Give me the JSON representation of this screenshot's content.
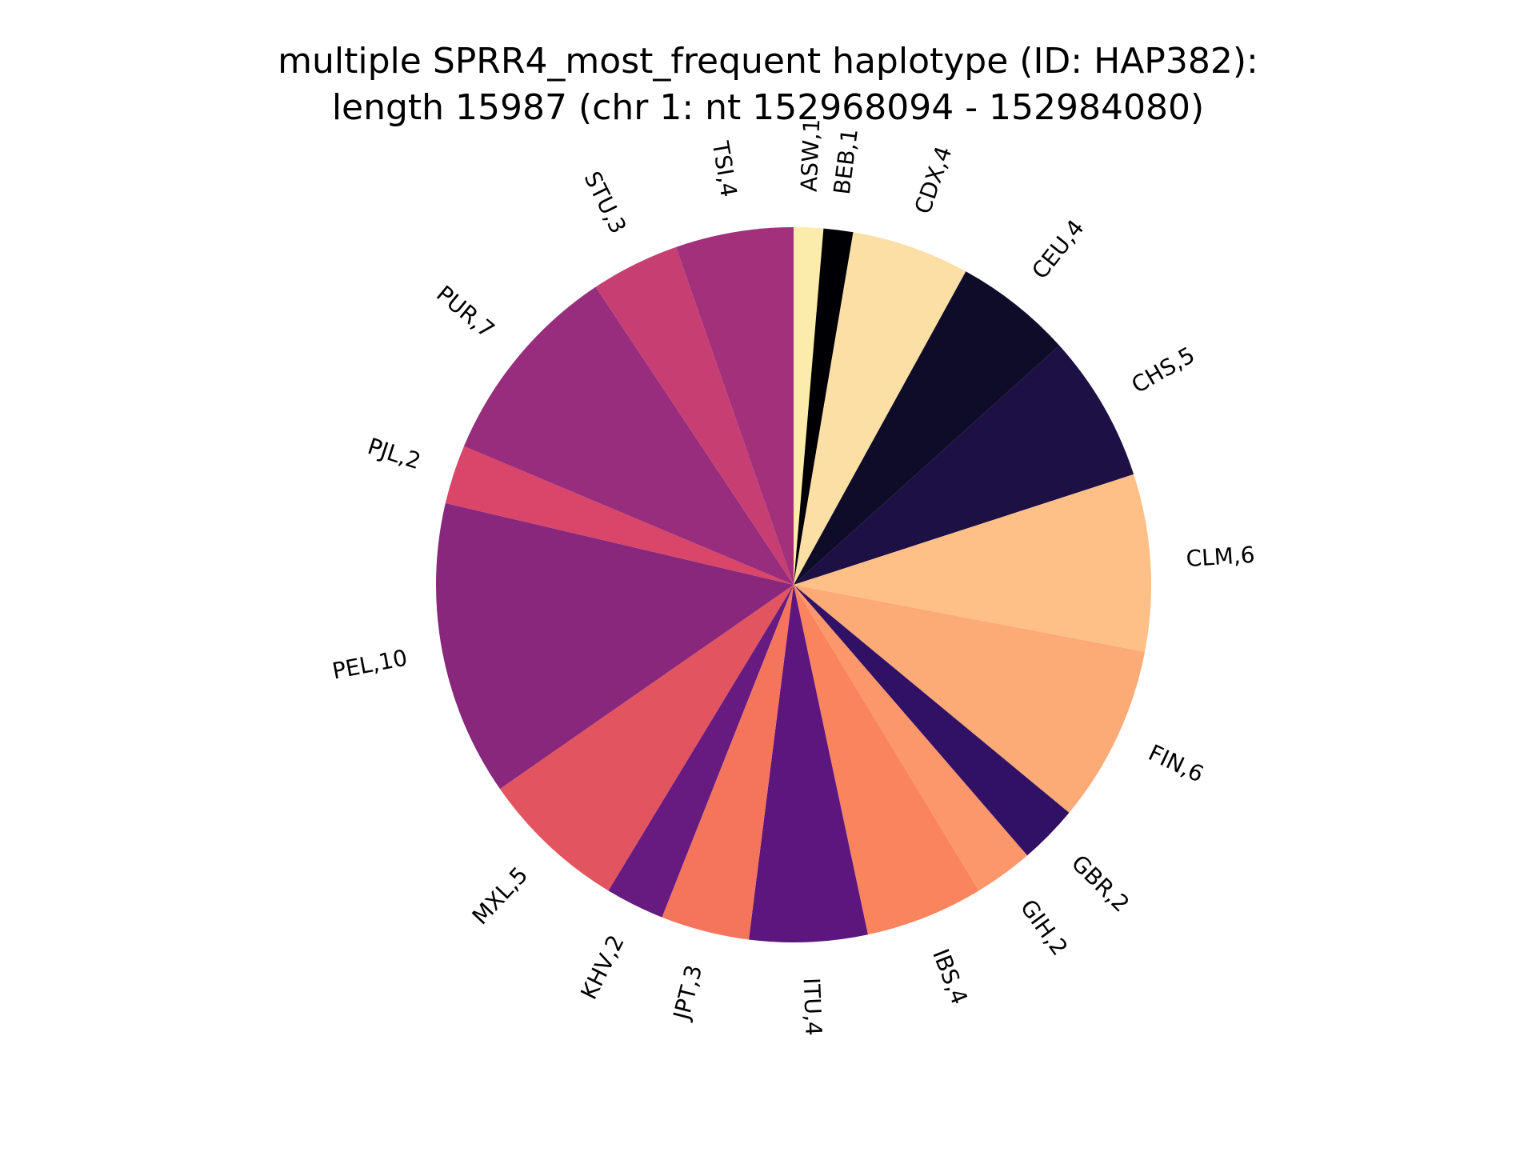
{
  "chart_data": {
    "type": "pie",
    "title_lines": [
      "multiple SPRR4_most_frequent haplotype (ID: HAP382):",
      "length 15987 (chr 1: nt 152968094 - 152984080)"
    ],
    "start_angle_deg": 90,
    "direction": "clockwise",
    "slices": [
      {
        "category": "ASW",
        "value": 1,
        "label": "ASW,1",
        "color": "#fcecab"
      },
      {
        "category": "BEB",
        "value": 1,
        "label": "BEB,1",
        "color": "#000004"
      },
      {
        "category": "CDX",
        "value": 4,
        "label": "CDX,4",
        "color": "#fcdfa4"
      },
      {
        "category": "CEU",
        "value": 4,
        "label": "CEU,4",
        "color": "#0f0c29"
      },
      {
        "category": "CHS",
        "value": 5,
        "label": "CHS,5",
        "color": "#1c1044"
      },
      {
        "category": "CLM",
        "value": 6,
        "label": "CLM,6",
        "color": "#fec086"
      },
      {
        "category": "FIN",
        "value": 6,
        "label": "FIN,6",
        "color": "#fcab77"
      },
      {
        "category": "GBR",
        "value": 2,
        "label": "GBR,2",
        "color": "#311165"
      },
      {
        "category": "GIH",
        "value": 2,
        "label": "GIH,2",
        "color": "#fc976b"
      },
      {
        "category": "IBS",
        "value": 4,
        "label": "IBS,4",
        "color": "#f9845e"
      },
      {
        "category": "ITU",
        "value": 4,
        "label": "ITU,4",
        "color": "#5c167e"
      },
      {
        "category": "JPT",
        "value": 3,
        "label": "JPT,3",
        "color": "#f5755c"
      },
      {
        "category": "KHV",
        "value": 2,
        "label": "KHV,2",
        "color": "#671b80"
      },
      {
        "category": "MXL",
        "value": 5,
        "label": "MXL,5",
        "color": "#e2545f"
      },
      {
        "category": "PEL",
        "value": 10,
        "label": "PEL,10",
        "color": "#88277c"
      },
      {
        "category": "PJL",
        "value": 2,
        "label": "PJL,2",
        "color": "#d9466a"
      },
      {
        "category": "PUR",
        "value": 7,
        "label": "PUR,7",
        "color": "#972d7c"
      },
      {
        "category": "STU",
        "value": 3,
        "label": "STU,3",
        "color": "#c73f72"
      },
      {
        "category": "TSI",
        "value": 4,
        "label": "TSI,4",
        "color": "#a3307b"
      }
    ]
  }
}
